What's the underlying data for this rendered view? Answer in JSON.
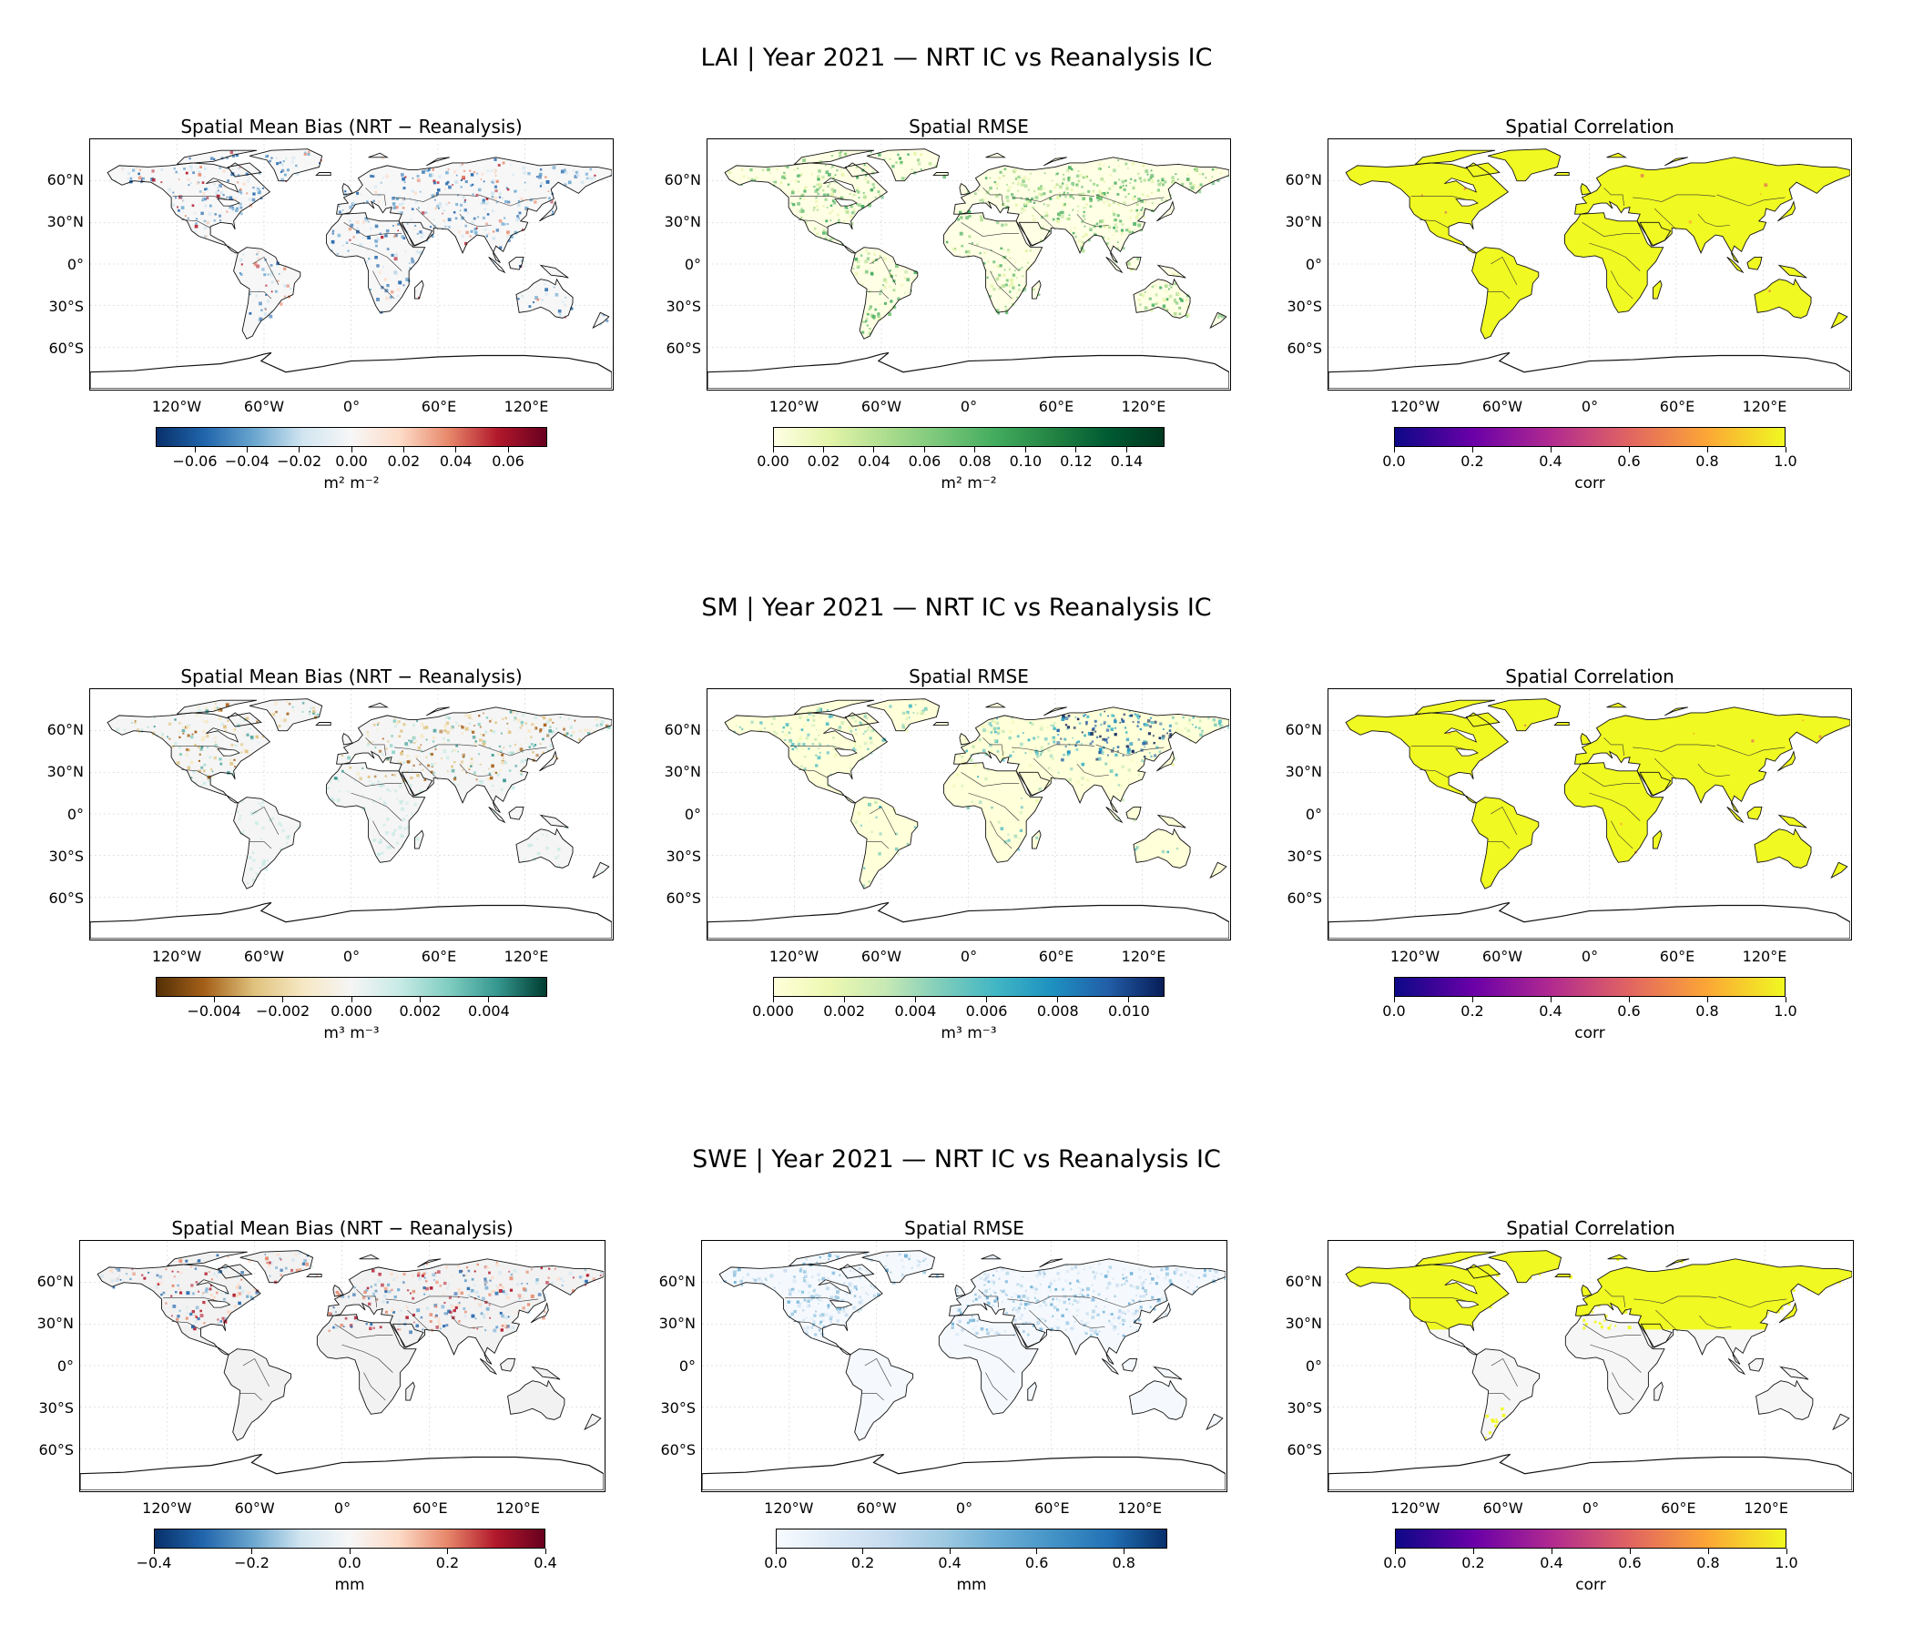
{
  "rows": [
    {
      "title": "LAI | Year 2021 — NRT IC vs Reanalysis IC",
      "panels": [
        {
          "title": "Spatial Mean Bias (NRT − Reanalysis)",
          "kind": "bias",
          "cmap": "RdBu_r",
          "colors": [
            "#08306b",
            "#2166ac",
            "#6aa6cf",
            "#d1e5f0",
            "#f7f7f7",
            "#fddbc7",
            "#e7876a",
            "#b2182b",
            "#67001f"
          ],
          "ticks": [
            "−0.06",
            "−0.04",
            "−0.02",
            "0.00",
            "0.02",
            "0.04",
            "0.06"
          ],
          "tick_values": [
            -0.06,
            -0.04,
            -0.02,
            0.0,
            0.02,
            0.04,
            0.06
          ],
          "range": [
            -0.075,
            0.075
          ],
          "unit": "m² m⁻²"
        },
        {
          "title": "Spatial RMSE",
          "kind": "rmse",
          "cmap": "YlGn",
          "colors": [
            "#ffffe5",
            "#e3f4a8",
            "#addd8e",
            "#78c679",
            "#41ab5d",
            "#238443",
            "#005a32",
            "#00381f"
          ],
          "ticks": [
            "0.00",
            "0.02",
            "0.04",
            "0.06",
            "0.08",
            "0.10",
            "0.12",
            "0.14"
          ],
          "tick_values": [
            0,
            0.02,
            0.04,
            0.06,
            0.08,
            0.1,
            0.12,
            0.14
          ],
          "range": [
            0,
            0.155
          ],
          "unit": "m² m⁻²"
        },
        {
          "title": "Spatial Correlation",
          "kind": "corr",
          "cmap": "plasma",
          "colors": [
            "#0d0887",
            "#6a00a8",
            "#b12a90",
            "#e16462",
            "#fca636",
            "#f0f921"
          ],
          "ticks": [
            "0.0",
            "0.2",
            "0.4",
            "0.6",
            "0.8",
            "1.0"
          ],
          "tick_values": [
            0,
            0.2,
            0.4,
            0.6,
            0.8,
            1.0
          ],
          "range": [
            0,
            1
          ],
          "unit": "corr"
        }
      ]
    },
    {
      "title": "SM | Year 2021 — NRT IC vs Reanalysis IC",
      "panels": [
        {
          "title": "Spatial Mean Bias (NRT − Reanalysis)",
          "kind": "bias",
          "cmap": "BrBG",
          "colors": [
            "#543005",
            "#a6611a",
            "#dfc27d",
            "#f6e8c3",
            "#f5f5f5",
            "#c7eae5",
            "#80cdc1",
            "#35978f",
            "#003c30"
          ],
          "ticks": [
            "−0.004",
            "−0.002",
            "0.000",
            "0.002",
            "0.004"
          ],
          "tick_values": [
            -0.004,
            -0.002,
            0.0,
            0.002,
            0.004
          ],
          "range": [
            -0.0057,
            0.0057
          ],
          "unit": "m³ m⁻³"
        },
        {
          "title": "Spatial RMSE",
          "kind": "rmse",
          "cmap": "YlGnBu",
          "colors": [
            "#ffffd9",
            "#edf8b1",
            "#c7e9b4",
            "#7fcdbb",
            "#41b6c4",
            "#1d91c0",
            "#225ea8",
            "#081d58"
          ],
          "ticks": [
            "0.000",
            "0.002",
            "0.004",
            "0.006",
            "0.008",
            "0.010"
          ],
          "tick_values": [
            0,
            0.002,
            0.004,
            0.006,
            0.008,
            0.01
          ],
          "range": [
            0,
            0.011
          ],
          "unit": "m³ m⁻³"
        },
        {
          "title": "Spatial Correlation",
          "kind": "corr",
          "cmap": "plasma",
          "colors": [
            "#0d0887",
            "#6a00a8",
            "#b12a90",
            "#e16462",
            "#fca636",
            "#f0f921"
          ],
          "ticks": [
            "0.0",
            "0.2",
            "0.4",
            "0.6",
            "0.8",
            "1.0"
          ],
          "tick_values": [
            0,
            0.2,
            0.4,
            0.6,
            0.8,
            1.0
          ],
          "range": [
            0,
            1
          ],
          "unit": "corr"
        }
      ]
    },
    {
      "title": "SWE | Year 2021 — NRT IC vs Reanalysis IC",
      "panels": [
        {
          "title": "Spatial Mean Bias (NRT − Reanalysis)",
          "kind": "bias",
          "cmap": "RdBu_r",
          "colors": [
            "#08306b",
            "#2166ac",
            "#6aa6cf",
            "#d1e5f0",
            "#f7f7f7",
            "#fddbc7",
            "#e7876a",
            "#b2182b",
            "#67001f"
          ],
          "ticks": [
            "−0.4",
            "−0.2",
            "0.0",
            "0.2",
            "0.4"
          ],
          "tick_values": [
            -0.4,
            -0.2,
            0.0,
            0.2,
            0.4
          ],
          "range": [
            -0.4,
            0.4
          ],
          "unit": "mm"
        },
        {
          "title": "Spatial RMSE",
          "kind": "rmse",
          "cmap": "Blues",
          "colors": [
            "#f7fbff",
            "#deebf7",
            "#c6dbef",
            "#9ecae1",
            "#6baed6",
            "#4292c6",
            "#2171b5",
            "#08306b"
          ],
          "ticks": [
            "0.0",
            "0.2",
            "0.4",
            "0.6",
            "0.8"
          ],
          "tick_values": [
            0,
            0.2,
            0.4,
            0.6,
            0.8
          ],
          "range": [
            0,
            0.9
          ],
          "unit": "mm"
        },
        {
          "title": "Spatial Correlation",
          "kind": "corr",
          "cmap": "plasma",
          "colors": [
            "#0d0887",
            "#6a00a8",
            "#b12a90",
            "#e16462",
            "#fca636",
            "#f0f921"
          ],
          "ticks": [
            "0.0",
            "0.2",
            "0.4",
            "0.6",
            "0.8",
            "1.0"
          ],
          "tick_values": [
            0,
            0.2,
            0.4,
            0.6,
            0.8,
            1.0
          ],
          "range": [
            0,
            1
          ],
          "unit": "corr"
        }
      ]
    }
  ],
  "lat_labels": [
    "60°N",
    "30°N",
    "0°",
    "30°S",
    "60°S"
  ],
  "lon_labels": [
    "120°W",
    "60°W",
    "0°",
    "60°E",
    "120°E"
  ],
  "land_colors": {
    "bias_neutral": "#eef1f4",
    "rmse_low": "#fbfbe6",
    "corr_high": "#f0f921",
    "coast": "#111111"
  }
}
